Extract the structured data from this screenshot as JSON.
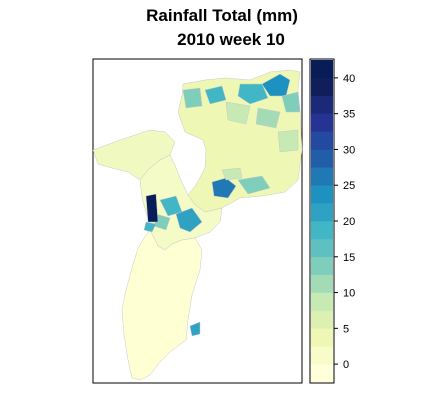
{
  "map": {
    "title_line1": "Rainfall Total (mm)",
    "title_line2": "2010 week 10",
    "region_color_low": "#ffffcc",
    "region_color_mid": "#eef8b4",
    "border_color": "#bfbfbf"
  },
  "legend": {
    "ticks": [
      "40",
      "35",
      "30",
      "25",
      "20",
      "15",
      "10",
      "5",
      "0"
    ],
    "bins": [
      {
        "lower": -2.5,
        "upper": 0,
        "color": "#ffffd9"
      },
      {
        "lower": 0,
        "upper": 2.5,
        "color": "#f8fcc8"
      },
      {
        "lower": 2.5,
        "upper": 5,
        "color": "#eef8b4"
      },
      {
        "lower": 5,
        "upper": 7.5,
        "color": "#dcf0b2"
      },
      {
        "lower": 7.5,
        "upper": 10,
        "color": "#c7e9b4"
      },
      {
        "lower": 10,
        "upper": 12.5,
        "color": "#a3dbb7"
      },
      {
        "lower": 12.5,
        "upper": 15,
        "color": "#7fcdbb"
      },
      {
        "lower": 15,
        "upper": 17.5,
        "color": "#5ec0c0"
      },
      {
        "lower": 17.5,
        "upper": 20,
        "color": "#41b6c4"
      },
      {
        "lower": 20,
        "upper": 22.5,
        "color": "#2fa1c2"
      },
      {
        "lower": 22.5,
        "upper": 25,
        "color": "#1d91c0"
      },
      {
        "lower": 25,
        "upper": 27.5,
        "color": "#2079b4"
      },
      {
        "lower": 27.5,
        "upper": 30,
        "color": "#225ea8"
      },
      {
        "lower": 30,
        "upper": 32.5,
        "color": "#2349a0"
      },
      {
        "lower": 32.5,
        "upper": 35,
        "color": "#253494"
      },
      {
        "lower": 35,
        "upper": 37.5,
        "color": "#1b2a78"
      },
      {
        "lower": 37.5,
        "upper": 40,
        "color": "#111e5c"
      },
      {
        "lower": 40,
        "upper": 42.5,
        "color": "#081d58"
      }
    ],
    "range": [
      -2.5,
      42.5
    ]
  }
}
